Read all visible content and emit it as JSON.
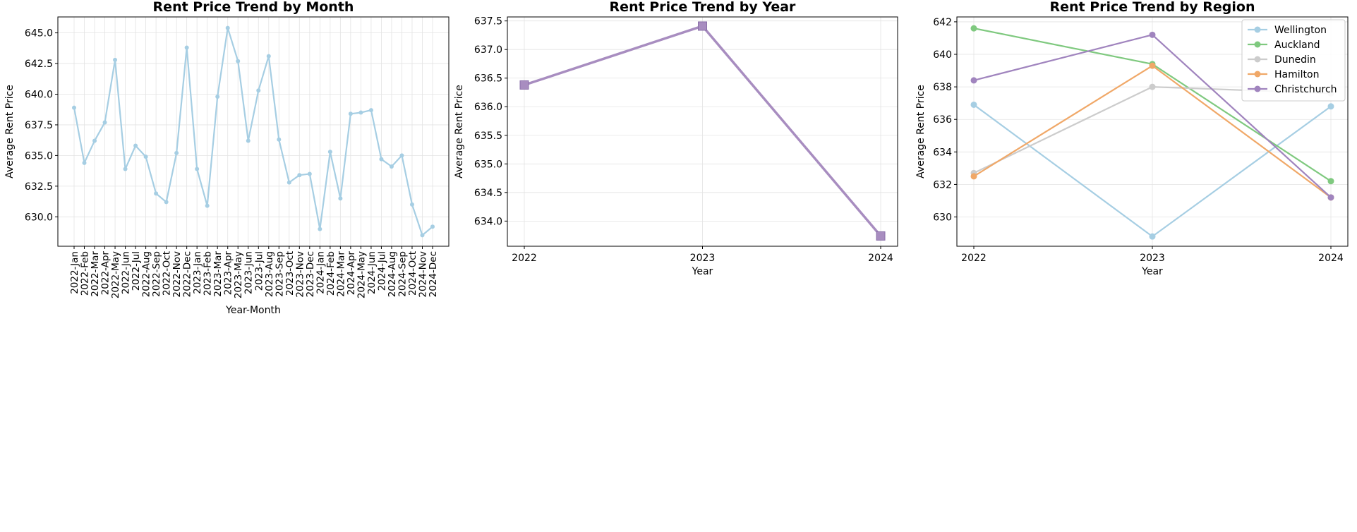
{
  "chart_data": [
    {
      "id": "month",
      "type": "line",
      "title": "Rent Price Trend by Month",
      "xlabel": "Year-Month",
      "ylabel": "Average Rent Price",
      "categories": [
        "2022-Jan",
        "2022-Feb",
        "2022-Mar",
        "2022-Apr",
        "2022-May",
        "2022-Jun",
        "2022-Jul",
        "2022-Aug",
        "2022-Sep",
        "2022-Oct",
        "2022-Nov",
        "2022-Dec",
        "2023-Jan",
        "2023-Feb",
        "2023-Mar",
        "2023-Apr",
        "2023-May",
        "2023-Jun",
        "2023-Jul",
        "2023-Aug",
        "2023-Sep",
        "2023-Oct",
        "2023-Nov",
        "2023-Dec",
        "2024-Jan",
        "2024-Feb",
        "2024-Mar",
        "2024-Apr",
        "2024-May",
        "2024-Jun",
        "2024-Jul",
        "2024-Aug",
        "2024-Sep",
        "2024-Oct",
        "2024-Nov",
        "2024-Dec"
      ],
      "series": [
        {
          "color": "#a6cee3",
          "marker": "circle",
          "values": [
            638.9,
            634.4,
            636.2,
            637.7,
            642.8,
            633.9,
            635.8,
            634.9,
            631.9,
            631.2,
            635.2,
            643.8,
            633.9,
            630.9,
            639.8,
            645.4,
            642.7,
            636.2,
            640.3,
            643.1,
            636.3,
            632.8,
            633.4,
            633.5,
            629.0,
            635.3,
            631.5,
            638.4,
            638.5,
            638.7,
            634.7,
            634.1,
            635.0,
            631.0,
            628.5,
            629.2
          ]
        }
      ],
      "ylim": [
        627.6,
        646.3
      ],
      "yticks": [
        630.0,
        632.5,
        635.0,
        637.5,
        640.0,
        642.5,
        645.0
      ],
      "ytick_labels": [
        "630.0",
        "632.5",
        "635.0",
        "637.5",
        "640.0",
        "642.5",
        "645.0"
      ],
      "grid": true
    },
    {
      "id": "year",
      "type": "line",
      "title": "Rent Price Trend by Year",
      "xlabel": "Year",
      "ylabel": "Average Rent Price",
      "categories": [
        "2022",
        "2023",
        "2024"
      ],
      "series": [
        {
          "color": "#a88dc0",
          "marker": "square",
          "values": [
            636.38,
            637.41,
            633.74
          ]
        }
      ],
      "ylim": [
        633.56,
        637.57
      ],
      "yticks": [
        634.0,
        634.5,
        635.0,
        635.5,
        636.0,
        636.5,
        637.0,
        637.5
      ],
      "ytick_labels": [
        "634.0",
        "634.5",
        "635.0",
        "635.5",
        "636.0",
        "636.5",
        "637.0",
        "637.5"
      ],
      "grid": true
    },
    {
      "id": "region",
      "type": "line",
      "title": "Rent Price Trend by Region",
      "xlabel": "Year",
      "ylabel": "Average Rent Price",
      "categories": [
        "2022",
        "2023",
        "2024"
      ],
      "series": [
        {
          "name": "Wellington",
          "color": "#a6cee3",
          "marker": "circle",
          "values": [
            636.9,
            628.8,
            636.8
          ]
        },
        {
          "name": "Auckland",
          "color": "#7fc97f",
          "marker": "circle",
          "values": [
            641.6,
            639.4,
            632.2
          ]
        },
        {
          "name": "Dunedin",
          "color": "#cccccc",
          "marker": "circle",
          "values": [
            632.7,
            638.0,
            637.6
          ]
        },
        {
          "name": "Hamilton",
          "color": "#f0a868",
          "marker": "circle",
          "values": [
            632.5,
            639.3,
            631.2
          ]
        },
        {
          "name": "Christchurch",
          "color": "#a084be",
          "marker": "circle",
          "values": [
            638.4,
            641.2,
            631.2
          ]
        }
      ],
      "ylim": [
        628.2,
        642.3
      ],
      "yticks": [
        630,
        632,
        634,
        636,
        638,
        640,
        642
      ],
      "ytick_labels": [
        "630",
        "632",
        "634",
        "636",
        "638",
        "640",
        "642"
      ],
      "legend": "top-right",
      "grid": true
    }
  ]
}
